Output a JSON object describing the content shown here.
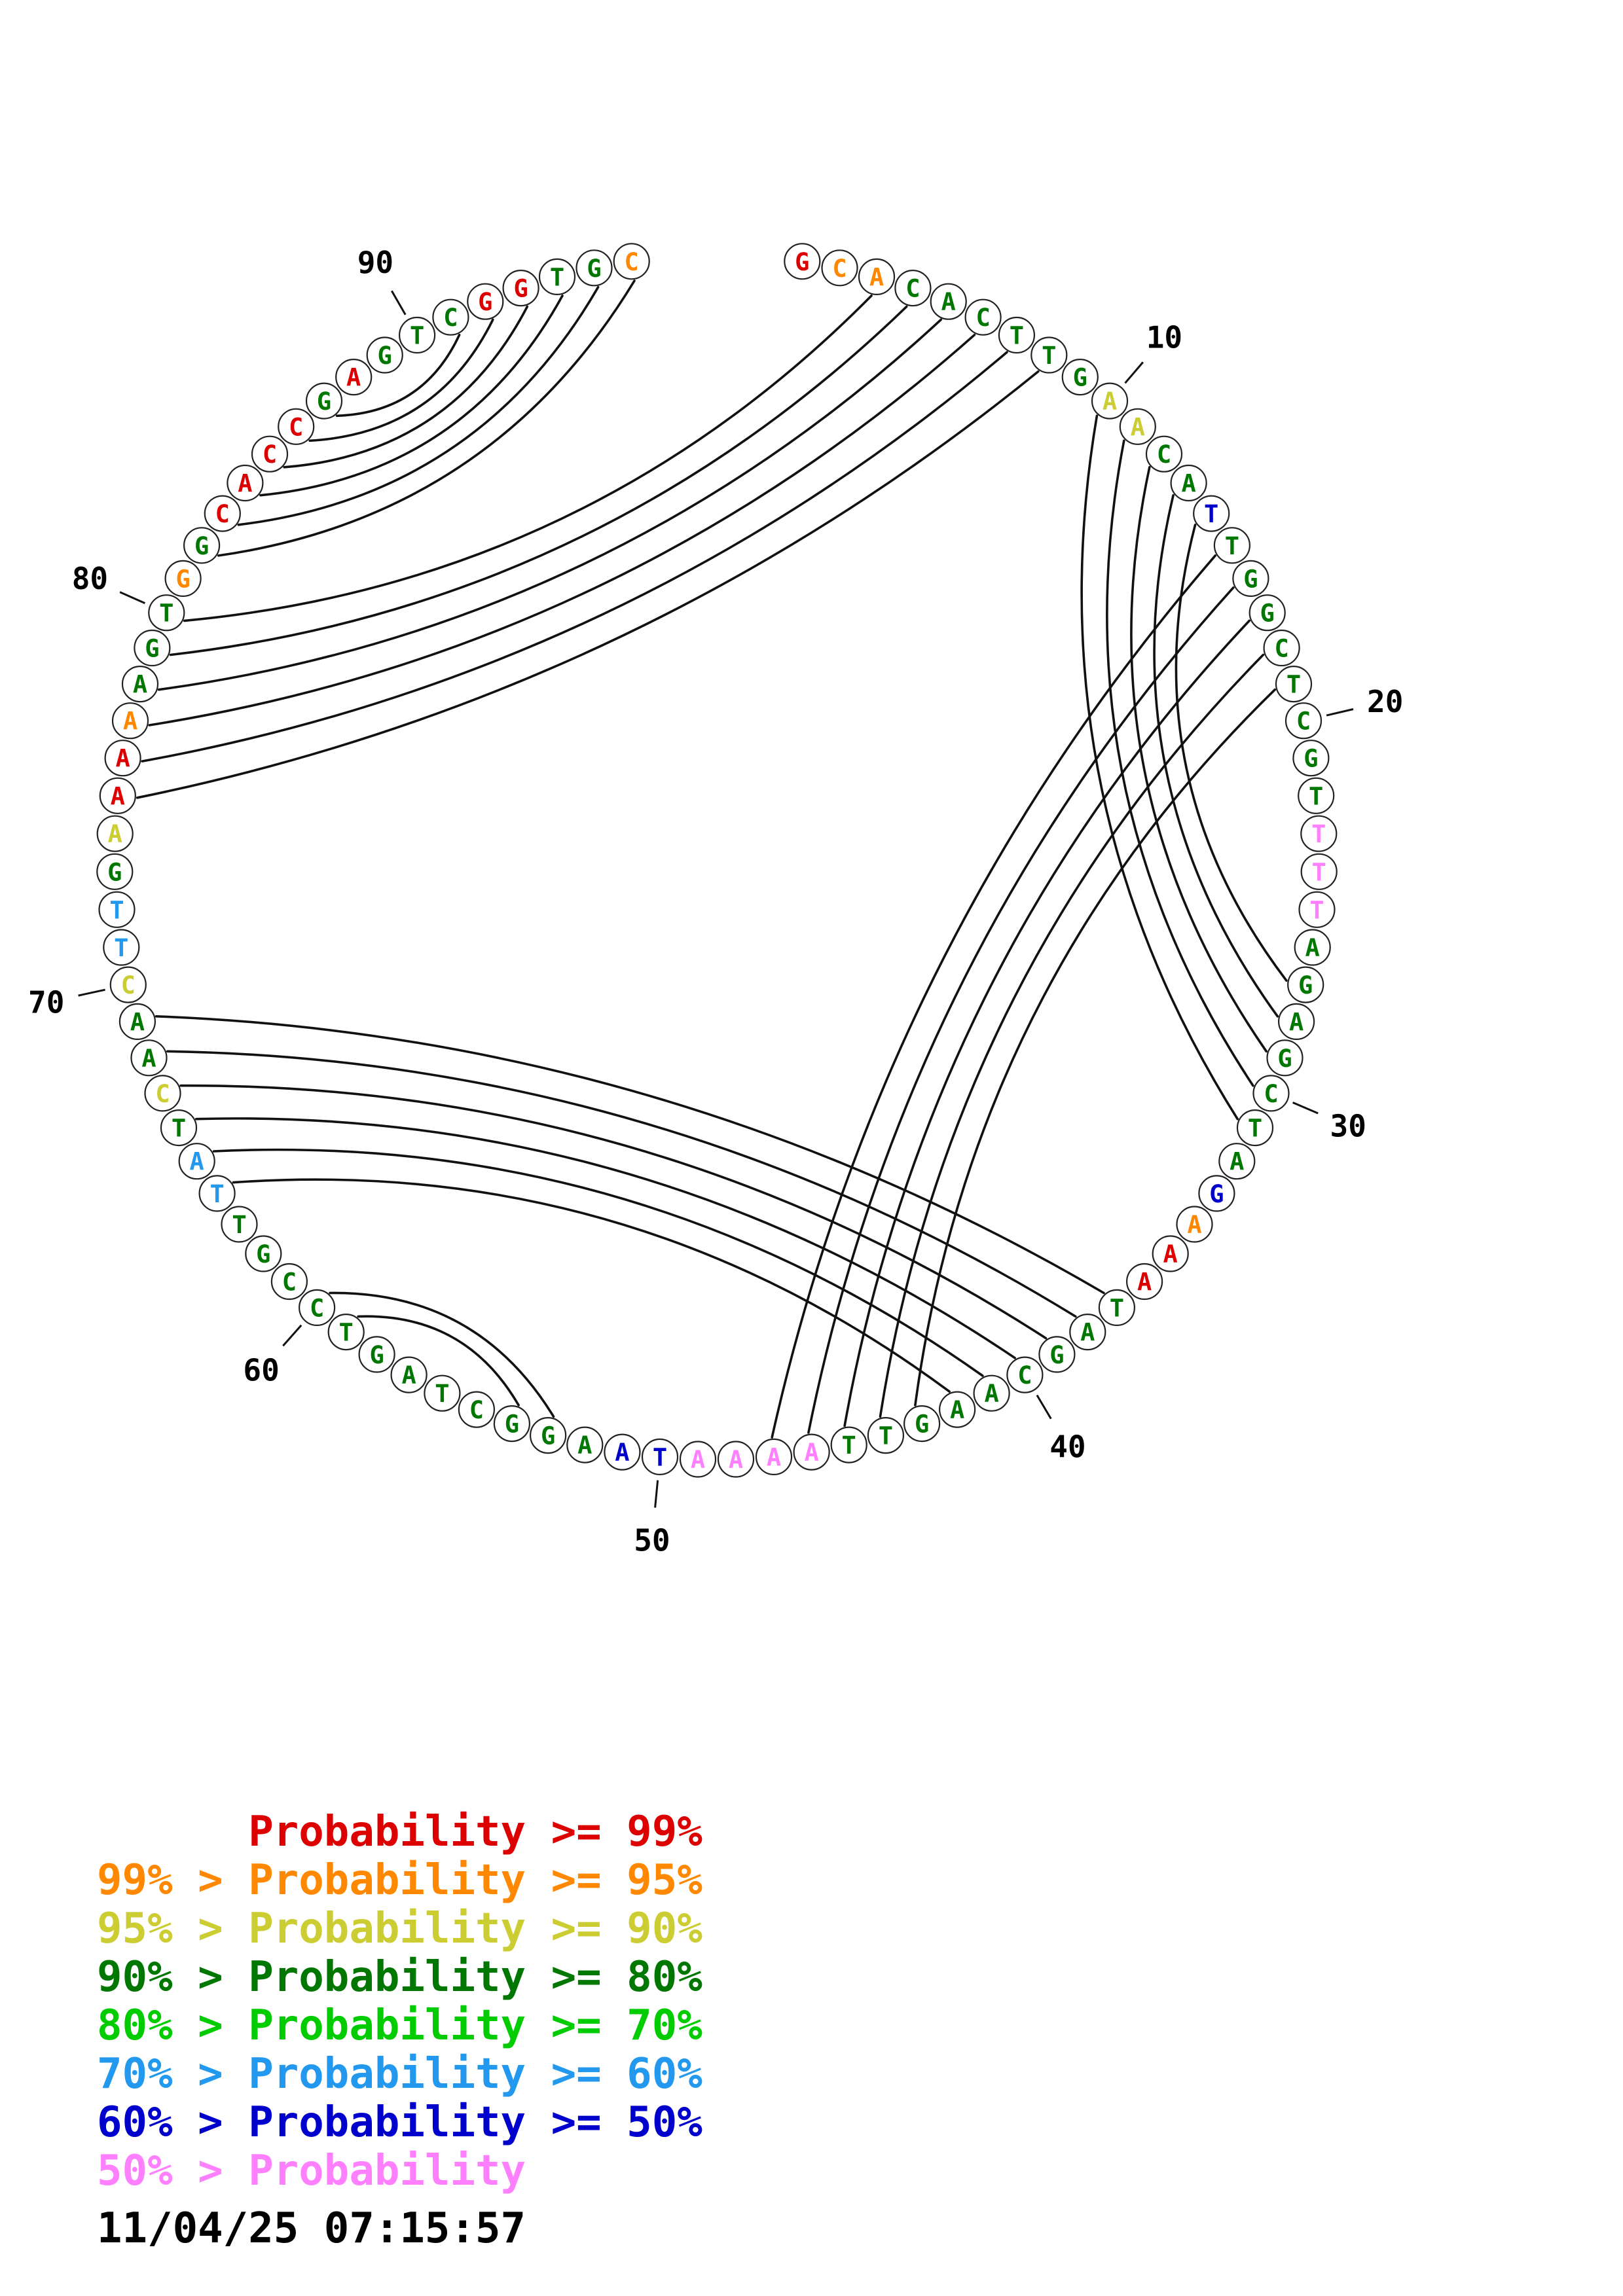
{
  "circle_plot": {
    "description": "Circular base-pair probability plot of a 96-nt sequence; arcs join paired bases, letters colored by pairing probability",
    "sequence": "GCACACTTGAACATTGGCTCGTTTTAGAGCTAGAAATAGCAAGTTAAAATAAGGCTAGTCCGTTATCAACTTGAAAAAGTGGCACCGAGTCGGTGC",
    "length": 96,
    "position_labels": [
      10,
      20,
      30,
      40,
      50,
      60,
      70,
      80,
      90
    ],
    "nucleotide_colors": [
      "R",
      "O",
      "O",
      "DG",
      "DG",
      "DG",
      "DG",
      "DG",
      "DG",
      "Y",
      "Y",
      "DG",
      "DG",
      "B",
      "DG",
      "DG",
      "DG",
      "DG",
      "DG",
      "DG",
      "DG",
      "DG",
      "P",
      "P",
      "P",
      "DG",
      "DG",
      "DG",
      "DG",
      "DG",
      "DG",
      "DG",
      "B",
      "O",
      "R",
      "R",
      "DG",
      "DG",
      "DG",
      "DG",
      "DG",
      "DG",
      "DG",
      "DG",
      "DG",
      "P",
      "P",
      "P",
      "P",
      "B",
      "B",
      "DG",
      "DG",
      "DG",
      "DG",
      "DG",
      "DG",
      "DG",
      "DG",
      "DG",
      "DG",
      "DG",
      "DG",
      "CB",
      "CB",
      "DG",
      "Y",
      "DG",
      "DG",
      "Y",
      "CB",
      "CB",
      "DG",
      "Y",
      "R",
      "R",
      "O",
      "DG",
      "DG",
      "DG",
      "O",
      "DG",
      "R",
      "R",
      "R",
      "R",
      "DG",
      "R",
      "DG",
      "DG",
      "DG",
      "R",
      "R",
      "DG",
      "DG",
      "O"
    ],
    "base_pairs": [
      [
        82,
        96
      ],
      [
        83,
        95
      ],
      [
        84,
        94
      ],
      [
        85,
        93
      ],
      [
        86,
        92
      ],
      [
        87,
        91
      ],
      [
        3,
        80
      ],
      [
        4,
        79
      ],
      [
        5,
        78
      ],
      [
        6,
        77
      ],
      [
        7,
        76
      ],
      [
        8,
        75
      ],
      [
        10,
        31
      ],
      [
        11,
        30
      ],
      [
        12,
        29
      ],
      [
        13,
        28
      ],
      [
        14,
        27
      ],
      [
        15,
        47
      ],
      [
        16,
        46
      ],
      [
        17,
        45
      ],
      [
        18,
        44
      ],
      [
        19,
        43
      ],
      [
        37,
        69
      ],
      [
        38,
        68
      ],
      [
        39,
        67
      ],
      [
        40,
        66
      ],
      [
        41,
        65
      ],
      [
        42,
        64
      ],
      [
        53,
        60
      ],
      [
        54,
        59
      ]
    ],
    "palette": {
      "R": "#dd0000",
      "O": "#ff8800",
      "Y": "#cccc33",
      "DG": "#007700",
      "LG": "#00cc00",
      "CB": "#2299ee",
      "B": "#0000cc",
      "P": "#ff80ff"
    },
    "arc_color": "#111111"
  },
  "legend": {
    "lines": [
      {
        "text": "      Probability >= 99%",
        "color": "#dd0000"
      },
      {
        "text": "99% > Probability >= 95%",
        "color": "#ff8800"
      },
      {
        "text": "95% > Probability >= 90%",
        "color": "#cccc33"
      },
      {
        "text": "90% > Probability >= 80%",
        "color": "#007700"
      },
      {
        "text": "80% > Probability >= 70%",
        "color": "#00cc00"
      },
      {
        "text": "70% > Probability >= 60%",
        "color": "#2299ee"
      },
      {
        "text": "60% > Probability >= 50%",
        "color": "#0000cc"
      },
      {
        "text": "50% > Probability",
        "color": "#ff80ff"
      }
    ]
  },
  "footer": {
    "timestamp": "11/04/25 07:15:57"
  }
}
